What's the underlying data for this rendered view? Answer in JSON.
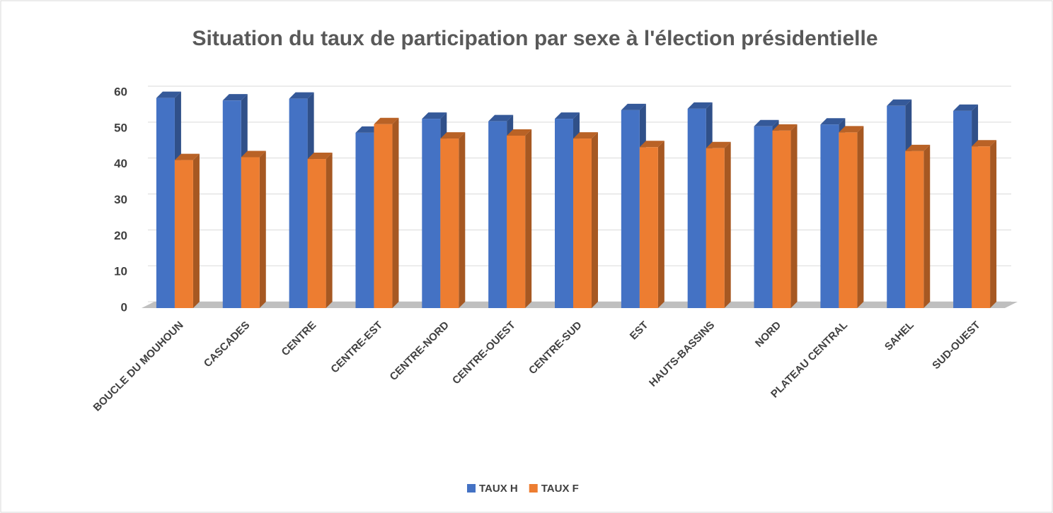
{
  "chart_data": {
    "type": "bar3d",
    "title": "Situation du taux de participation par sexe à l'élection présidentielle",
    "categories": [
      "BOUCLE DU MOUHOUN",
      "CASCADES",
      "CENTRE",
      "CENTRE-EST",
      "CENTRE-NORD",
      "CENTRE-OUEST",
      "CENTRE-SUD",
      "EST",
      "HAUTS-BASSINS",
      "NORD",
      "PLATEAU CENTRAL",
      "SAHEL",
      "SUD-OUEST"
    ],
    "series": [
      {
        "name": "TAUX H",
        "color": "#4472c4",
        "values": [
          58.5,
          57.8,
          58.3,
          48.8,
          52.7,
          52.0,
          52.7,
          55.1,
          55.5,
          50.6,
          51.1,
          56.3,
          54.9
        ]
      },
      {
        "name": "TAUX F",
        "color": "#ed7d31",
        "values": [
          41.2,
          42.0,
          41.5,
          51.2,
          47.2,
          48.0,
          47.2,
          44.8,
          44.5,
          49.4,
          48.9,
          43.7,
          45.0
        ]
      }
    ],
    "ylim": [
      0,
      60
    ],
    "yticks": [
      0,
      10,
      20,
      30,
      40,
      50,
      60
    ],
    "grid": true,
    "legend": "bottom"
  }
}
